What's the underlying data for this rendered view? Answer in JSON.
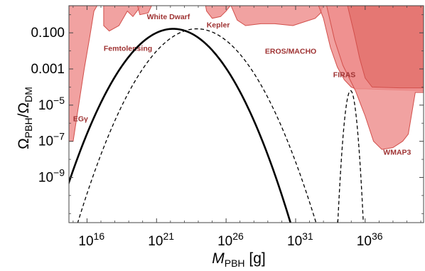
{
  "chart_data": {
    "type": "line",
    "xlabel": {
      "main": "M",
      "sub": "PBH",
      "unit": " [g]"
    },
    "ylabel": {
      "a": "Ω",
      "a_sub": "PBH",
      "slash": "/Ω",
      "b_sub": "DM"
    },
    "x_scale": "log",
    "y_scale": "log",
    "xlim_exp": [
      14.7,
      40.2
    ],
    "ylim_exp": [
      -11.5,
      0.5
    ],
    "x_ticks": [
      {
        "base": "10",
        "exp": "16",
        "value_exp": 16
      },
      {
        "base": "10",
        "exp": "21",
        "value_exp": 21
      },
      {
        "base": "10",
        "exp": "26",
        "value_exp": 26
      },
      {
        "base": "10",
        "exp": "31",
        "value_exp": 31
      },
      {
        "base": "10",
        "exp": "36",
        "value_exp": 36
      }
    ],
    "y_ticks": [
      {
        "label": "0.100",
        "value_exp": -1,
        "kind": "plain"
      },
      {
        "label": "0.001",
        "value_exp": -3,
        "kind": "plain"
      },
      {
        "base": "10",
        "exp": "−5",
        "value_exp": -5,
        "kind": "power"
      },
      {
        "base": "10",
        "exp": "−7",
        "value_exp": -7,
        "kind": "power"
      },
      {
        "base": "10",
        "exp": "−9",
        "value_exp": -9,
        "kind": "power"
      }
    ],
    "grid": false,
    "series": [
      {
        "style": "solid",
        "peak_x_exp": 22.2,
        "peak_y_exp": -0.78,
        "width_exp": 1.82
      },
      {
        "style": "dashed",
        "peak_x_exp": 23.9,
        "peak_y_exp": -0.78,
        "width_exp": 1.85
      },
      {
        "style": "dashed",
        "peak_x_exp": 34.95,
        "peak_y_exp": -4.2,
        "width_exp": 0.24
      }
    ],
    "constraints": [
      {
        "label": "EGγ",
        "label_at": [
          15.0,
          -5.9
        ]
      },
      {
        "label": "Femtolensing",
        "label_at": [
          17.2,
          -2.0
        ]
      },
      {
        "label": "White Dwarf",
        "label_at": [
          20.3,
          -0.25
        ]
      },
      {
        "label": "Kepler",
        "label_at": [
          24.6,
          -0.7
        ]
      },
      {
        "label": "EROS/MACHO",
        "label_at": [
          28.8,
          -2.15
        ]
      },
      {
        "label": "FIRAS",
        "label_at": [
          33.7,
          -3.45
        ]
      },
      {
        "label": "WMAP3",
        "label_at": [
          37.3,
          -7.75
        ]
      }
    ],
    "colors": {
      "constraint_fill": "#ee8e8c",
      "constraint_fill_dark": "#e3716d",
      "constraint_edge": "#d24f4b",
      "label": "#9e3232",
      "curves": "#000000"
    }
  }
}
